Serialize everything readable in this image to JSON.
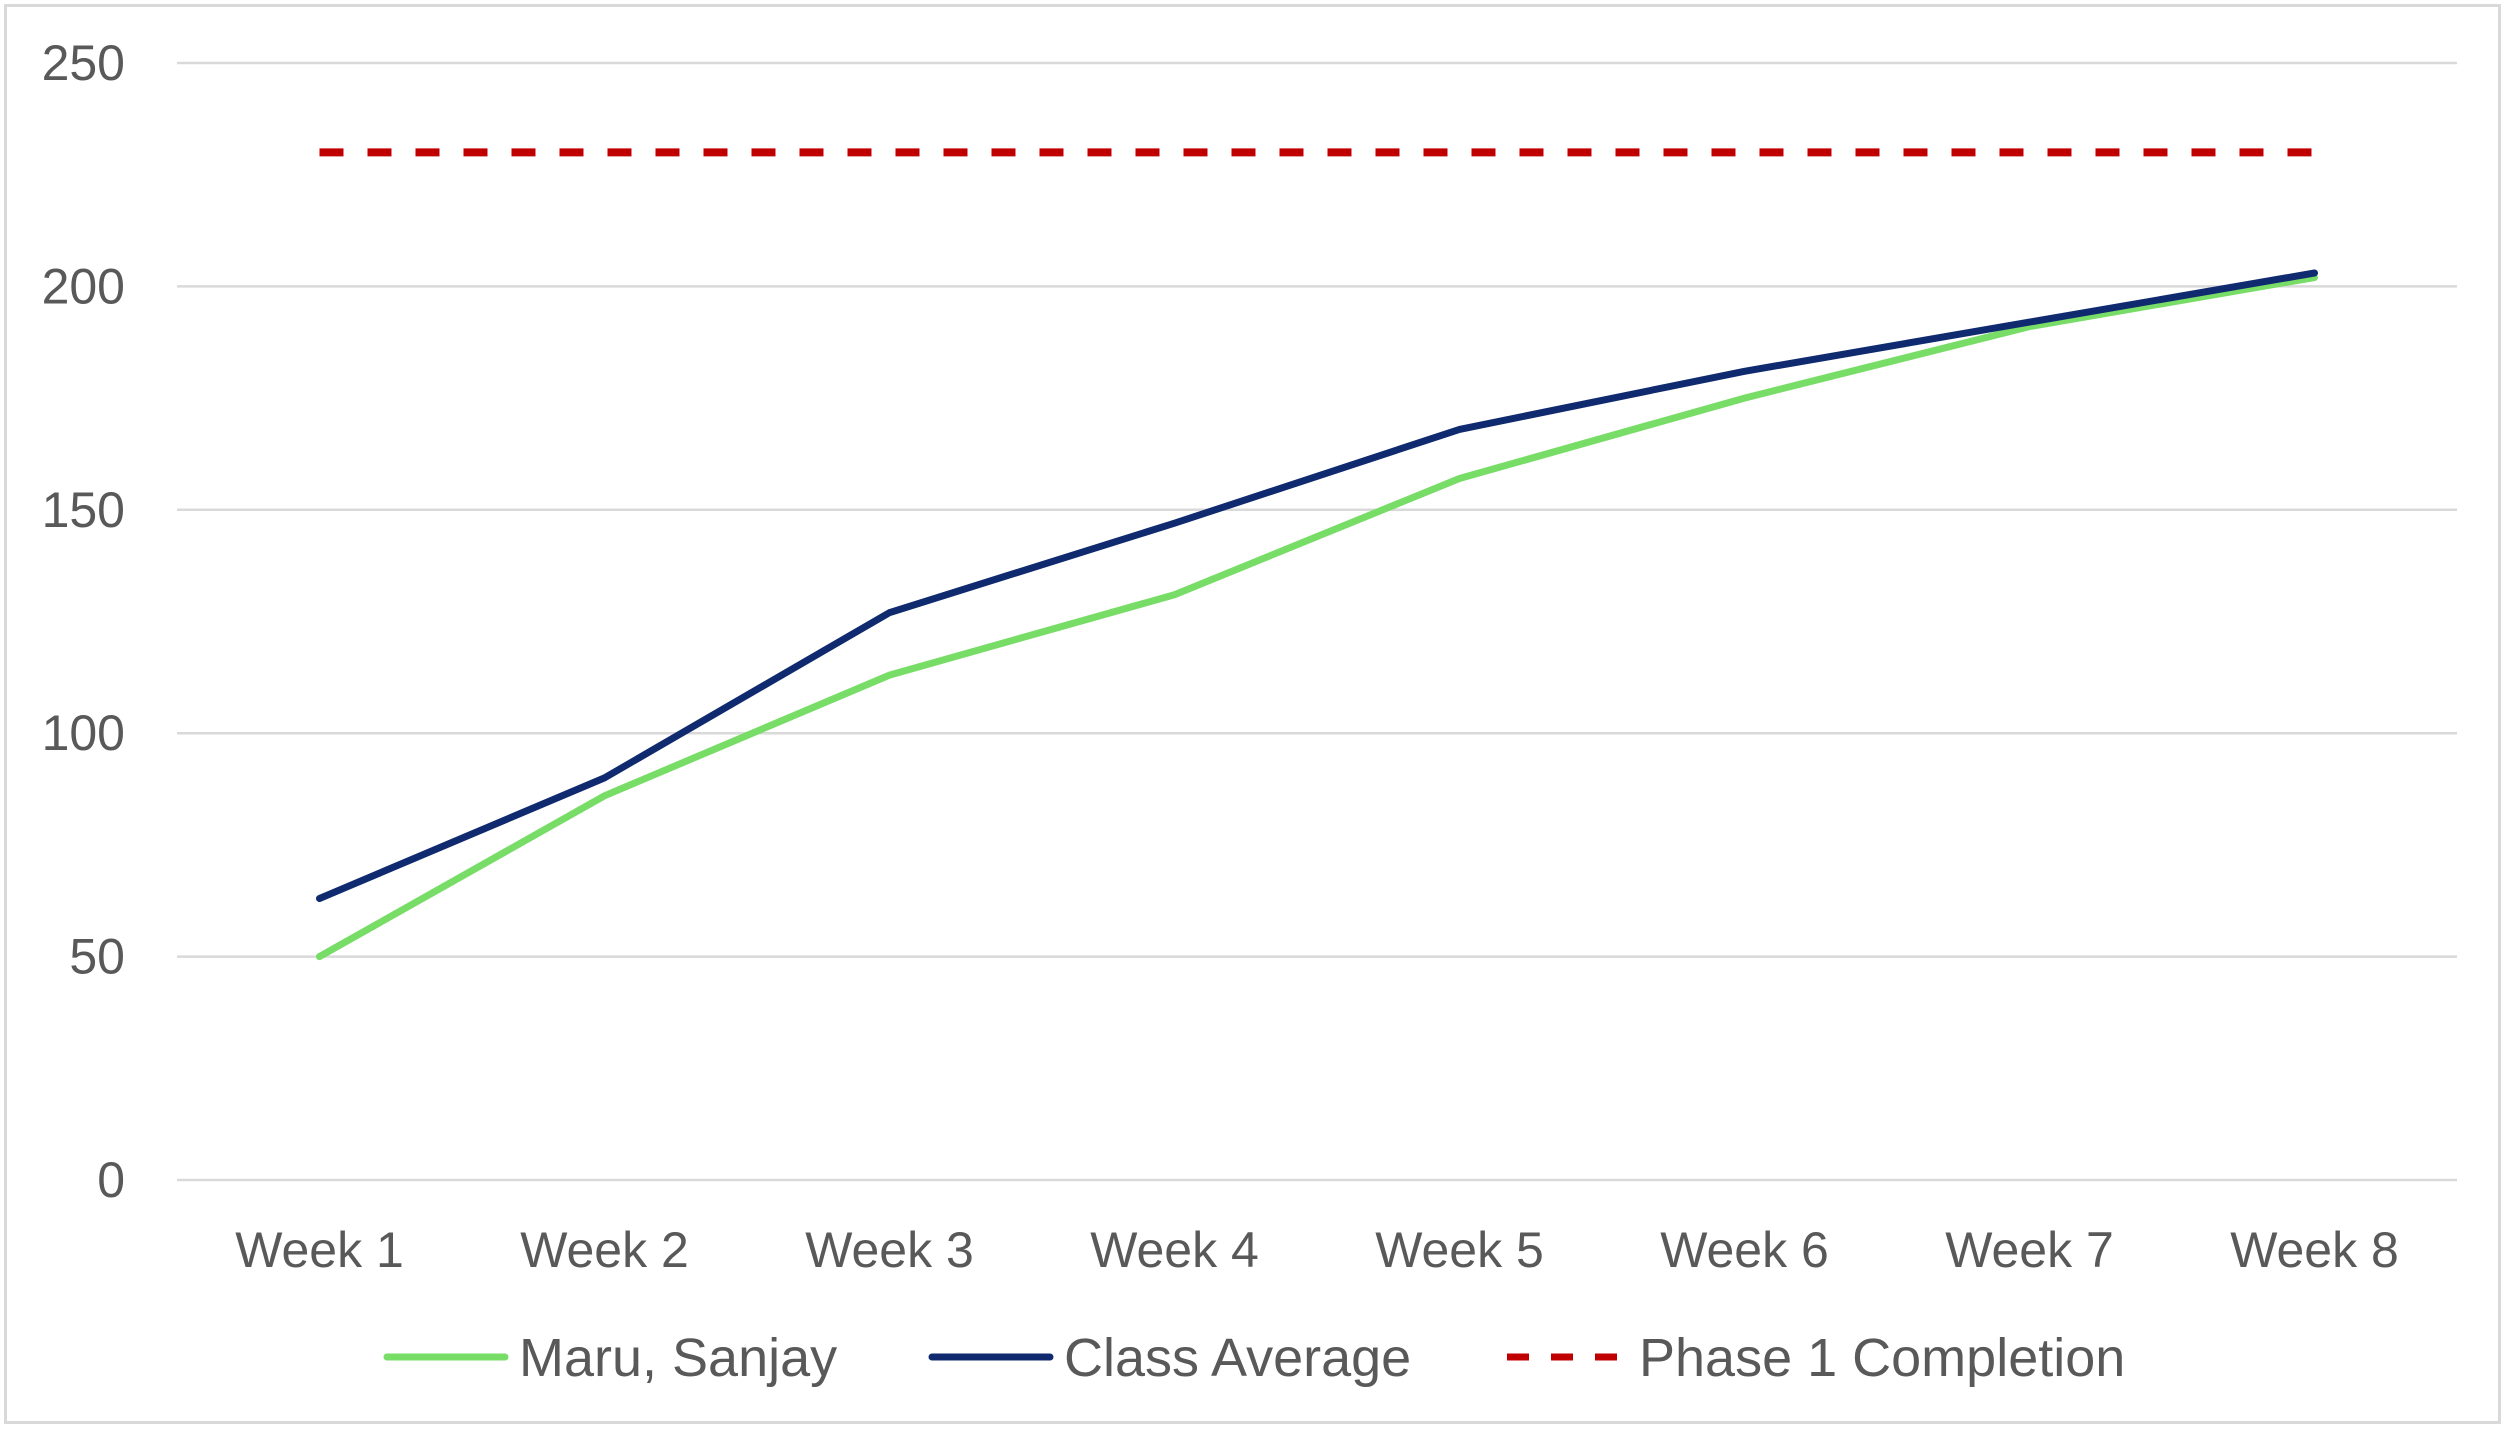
{
  "chart_data": {
    "type": "line",
    "title": "",
    "xlabel": "",
    "ylabel": "",
    "categories": [
      "Week 1",
      "Week 2",
      "Week 3",
      "Week 4",
      "Week 5",
      "Week 6",
      "Week 7",
      "Week 8"
    ],
    "y_ticks": [
      "0",
      "50",
      "100",
      "150",
      "200",
      "250"
    ],
    "ylim": [
      0,
      250
    ],
    "grid": "horizontal",
    "legend_position": "bottom",
    "series": [
      {
        "name": "Maru, Sanjay",
        "values": [
          50,
          86,
          113,
          131,
          157,
          175,
          191,
          202
        ],
        "color": "#77dd66",
        "style": "solid"
      },
      {
        "name": "Class Average",
        "values": [
          63,
          90,
          127,
          147,
          168,
          181,
          192,
          203
        ],
        "color": "#0f2a6e",
        "style": "solid"
      },
      {
        "name": "Phase 1 Completion",
        "values": [
          230,
          230,
          230,
          230,
          230,
          230,
          230,
          230
        ],
        "color": "#c00000",
        "style": "dashed"
      }
    ]
  }
}
